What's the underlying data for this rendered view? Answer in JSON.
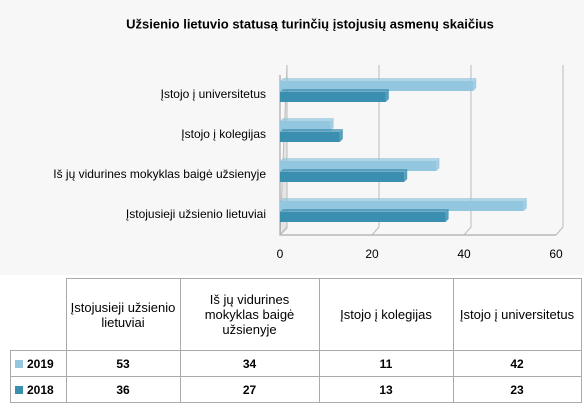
{
  "chart_data": {
    "type": "bar",
    "orientation": "horizontal",
    "title": "Užsienio lietuvio statusą turinčių įstojusių asmenų skaičius",
    "categories": [
      "Įstojusieji užsienio lietuviai",
      "Iš jų vidurines mokyklas baigė užsienyje",
      "Įstojo į kolegijas",
      "Įstojo į universitetus"
    ],
    "series": [
      {
        "name": "2019",
        "color": "#93c6df",
        "values": [
          53,
          34,
          11,
          42
        ]
      },
      {
        "name": "2018",
        "color": "#3a8fb0",
        "values": [
          36,
          27,
          13,
          23
        ]
      }
    ],
    "xlim": [
      0,
      60
    ],
    "xticks": [
      0,
      20,
      40,
      60
    ],
    "grid": true
  }
}
